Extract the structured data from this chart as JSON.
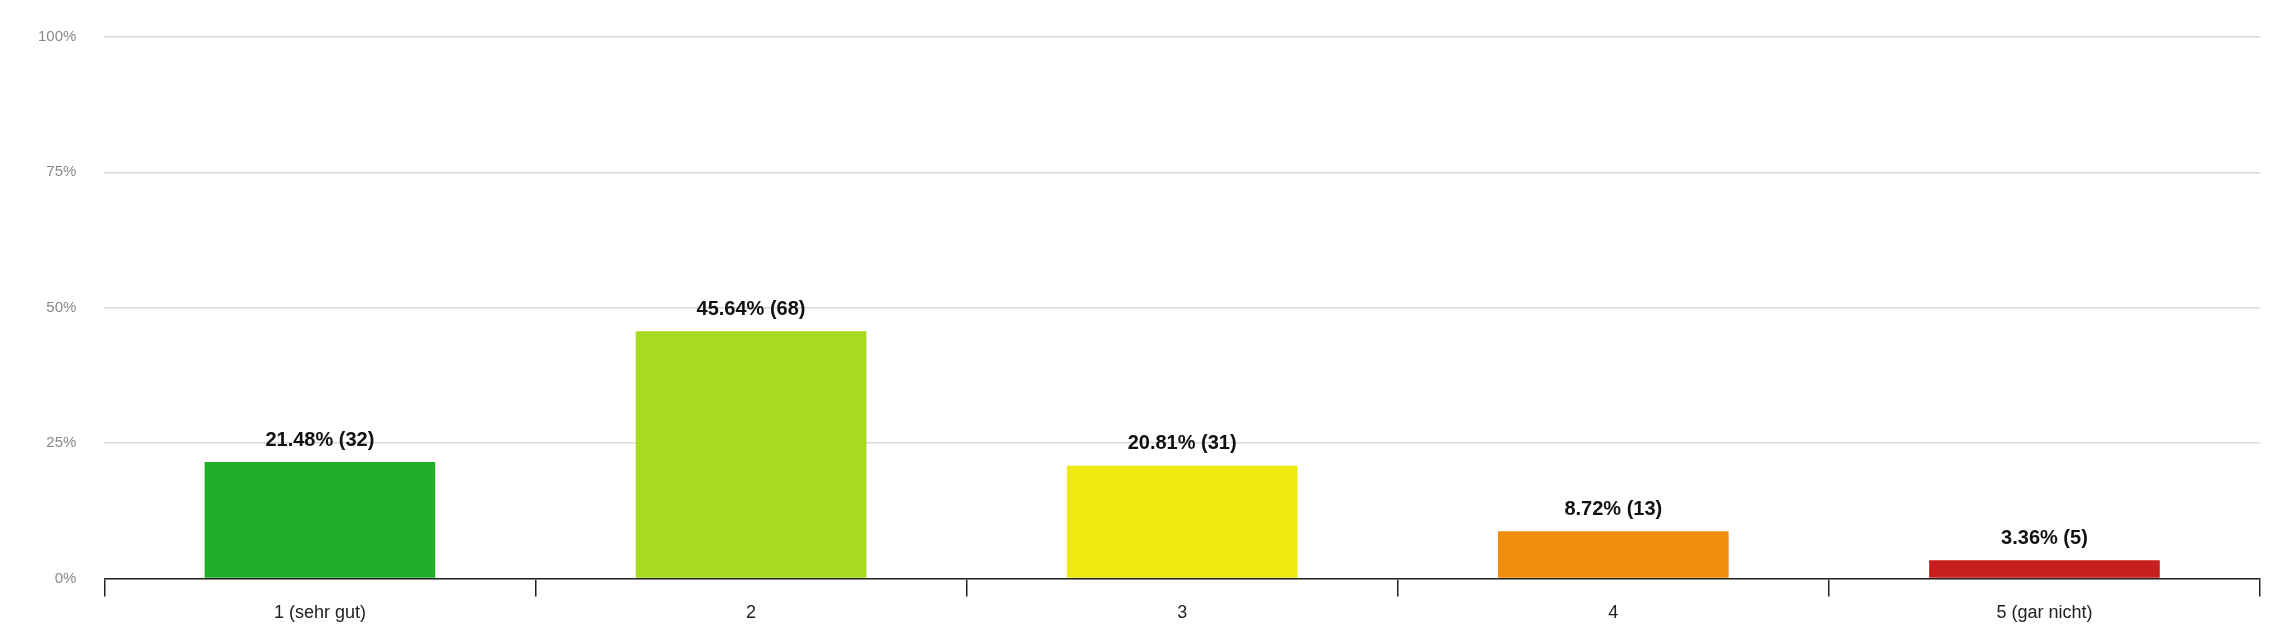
{
  "chart_data": {
    "type": "bar",
    "categories": [
      "1 (sehr gut)",
      "2",
      "3",
      "4",
      "5 (gar nicht)"
    ],
    "values": [
      21.48,
      45.64,
      20.81,
      8.72,
      3.36
    ],
    "colors": [
      "#1faf2a",
      "#a8d923",
      "#f0e90f",
      "#f28e0e",
      "#c81e1e"
    ],
    "value_labels": [
      "21.48% (32)",
      "45.64% (68)",
      "20.81% (31)",
      "8.72% (13)",
      "3.36% (5)"
    ],
    "ylim": [
      0,
      100
    ],
    "yticks": [
      {
        "value": 0,
        "label": "0%"
      },
      {
        "value": 25,
        "label": "25%"
      },
      {
        "value": 50,
        "label": "50%"
      },
      {
        "value": 75,
        "label": "75%"
      },
      {
        "value": 100,
        "label": "100%"
      }
    ],
    "grid": "y"
  }
}
